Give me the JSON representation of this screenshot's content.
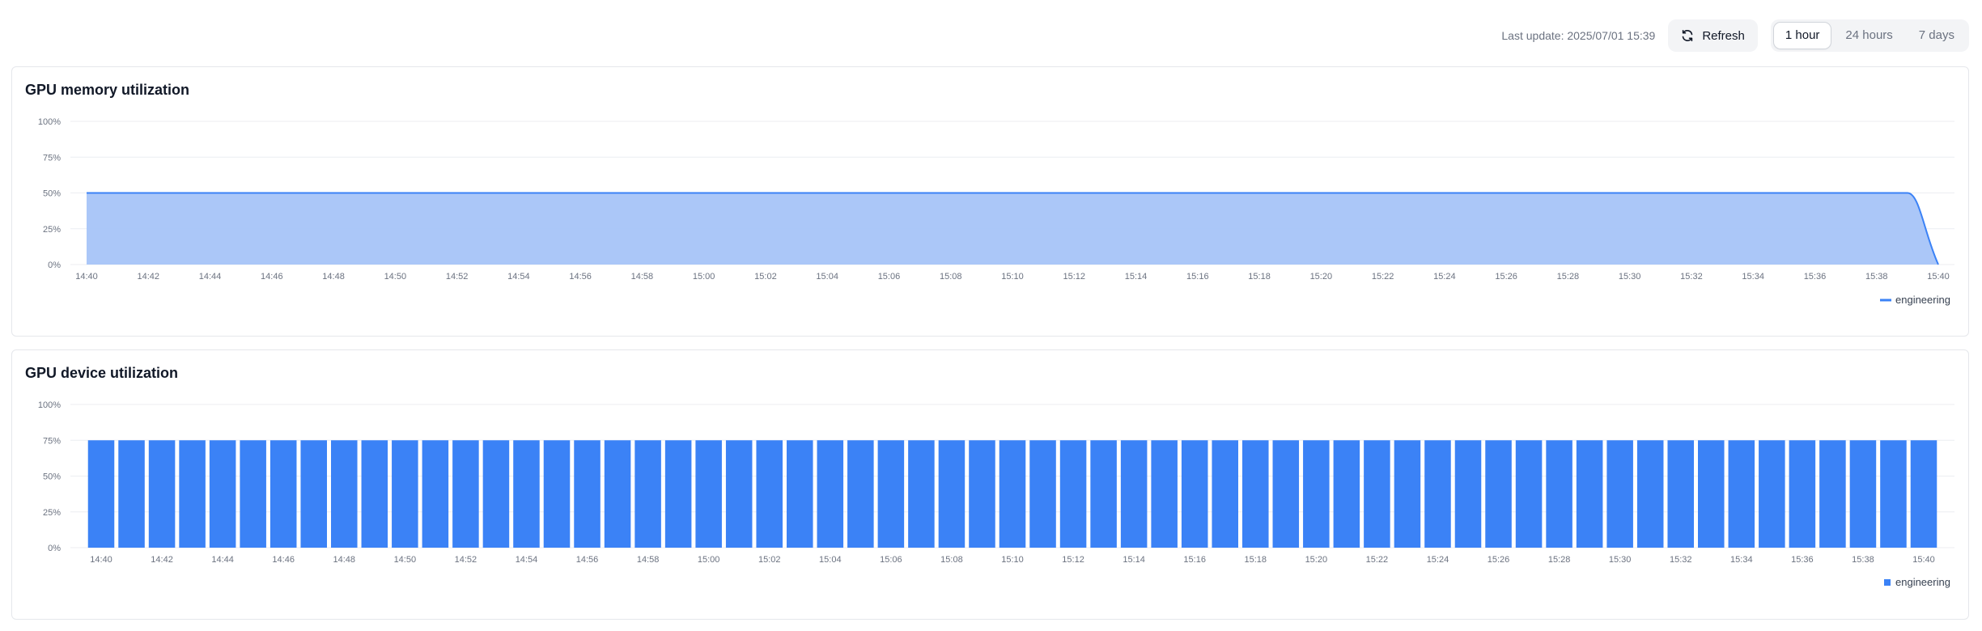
{
  "header": {
    "last_update": "Last update: 2025/07/01 15:39",
    "refresh_label": "Refresh",
    "range_options": [
      "1 hour",
      "24 hours",
      "7 days"
    ],
    "selected_range": "1 hour"
  },
  "colors": {
    "accent": "#3b82f6",
    "area_fill": "#a7c4f8"
  },
  "chart_data": [
    {
      "type": "area",
      "title": "GPU memory utilization",
      "y_ticks": [
        "100%",
        "75%",
        "50%",
        "25%",
        "0%"
      ],
      "ylim": [
        0,
        100
      ],
      "x_tick_labels": [
        "14:40",
        "14:42",
        "14:44",
        "14:46",
        "14:48",
        "14:50",
        "14:52",
        "14:54",
        "14:56",
        "14:58",
        "15:00",
        "15:02",
        "15:04",
        "15:06",
        "15:08",
        "15:10",
        "15:12",
        "15:14",
        "15:16",
        "15:18",
        "15:20",
        "15:22",
        "15:24",
        "15:26",
        "15:28",
        "15:30",
        "15:32",
        "15:34",
        "15:36",
        "15:38",
        "15:40"
      ],
      "x_range_minutes": [
        0,
        60
      ],
      "series": [
        {
          "name": "engineering",
          "points": [
            [
              0,
              50
            ],
            [
              59,
              50
            ],
            [
              60,
              0
            ]
          ]
        }
      ],
      "grid": true,
      "legend": "bottom-right"
    },
    {
      "type": "bar",
      "title": "GPU device utilization",
      "y_ticks": [
        "100%",
        "75%",
        "50%",
        "25%",
        "0%"
      ],
      "ylim": [
        0,
        100
      ],
      "x_tick_labels": [
        "14:40",
        "14:42",
        "14:44",
        "14:46",
        "14:48",
        "14:50",
        "14:52",
        "14:54",
        "14:56",
        "14:58",
        "15:00",
        "15:02",
        "15:04",
        "15:06",
        "15:08",
        "15:10",
        "15:12",
        "15:14",
        "15:16",
        "15:18",
        "15:20",
        "15:22",
        "15:24",
        "15:26",
        "15:28",
        "15:30",
        "15:32",
        "15:34",
        "15:36",
        "15:38",
        "15:40"
      ],
      "series": [
        {
          "name": "engineering",
          "bar_count": 61,
          "value": 75
        }
      ],
      "grid": true,
      "legend": "bottom-right"
    }
  ]
}
